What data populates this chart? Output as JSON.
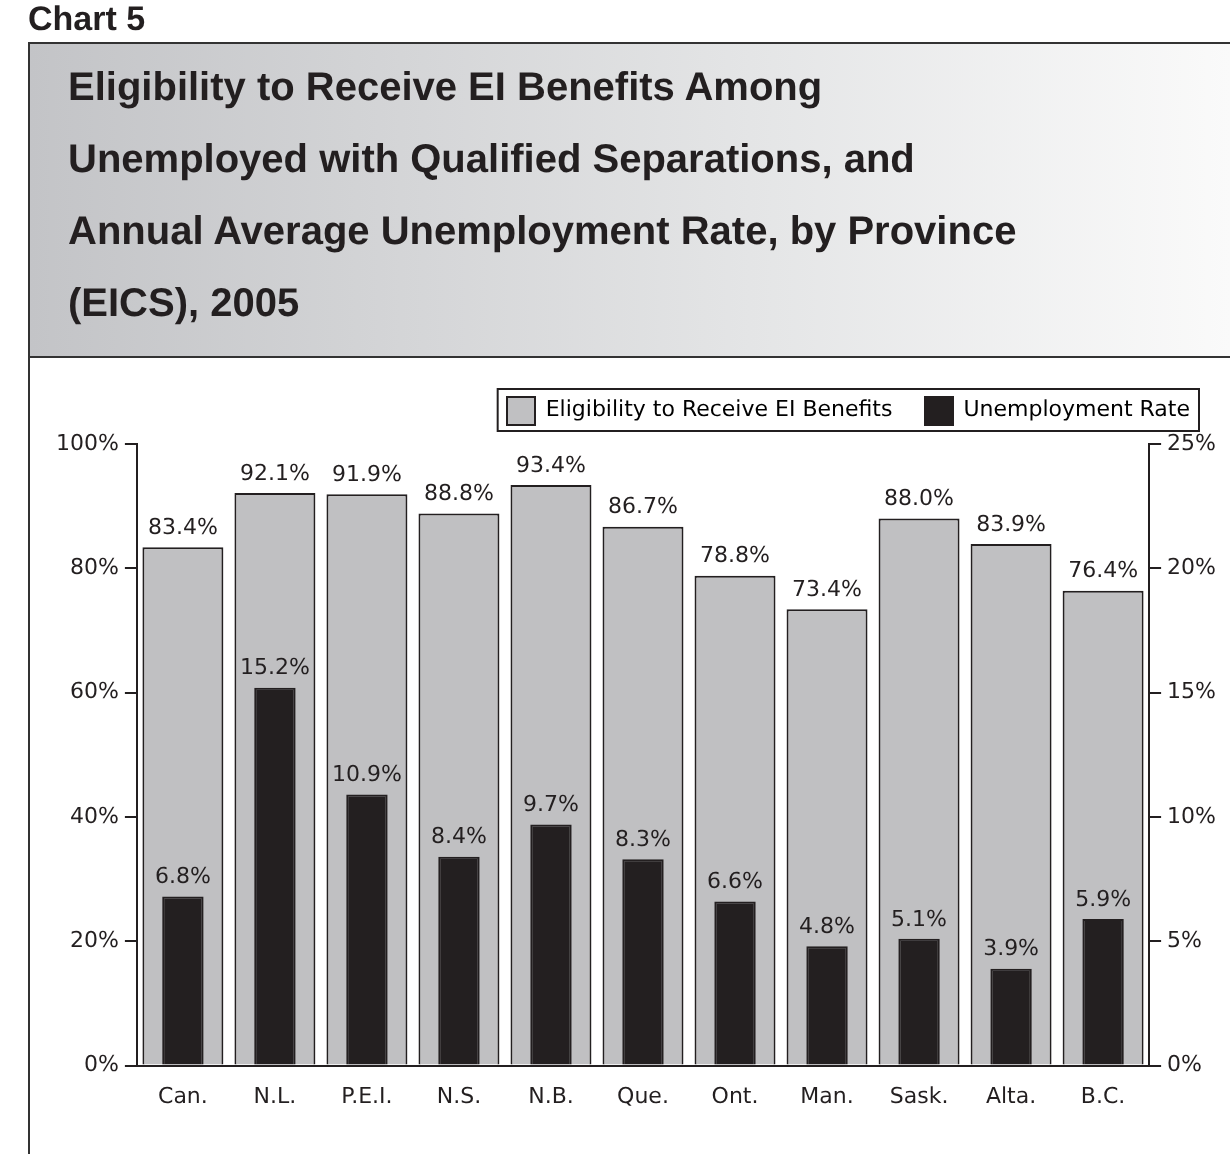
{
  "chart_data": {
    "type": "bar",
    "title": "Eligibility to Receive EI Benefits Among Unemployed with Qualified Separations, and Annual Average Unemployment Rate, by Province (EICS), 2005",
    "annotations": [
      "Chart 5"
    ],
    "categories": [
      "Can.",
      "N.L.",
      "P.E.I.",
      "N.S.",
      "N.B.",
      "Que.",
      "Ont.",
      "Man.",
      "Sask.",
      "Alta.",
      "B.C."
    ],
    "series": [
      {
        "name": "Eligibility to Receive EI Benefits",
        "color": "#c0c0c2",
        "values": [
          83.4,
          92.1,
          91.9,
          88.8,
          93.4,
          86.7,
          78.8,
          73.4,
          88.0,
          83.9,
          76.4
        ],
        "value_labels": [
          "83.4%",
          "92.1%",
          "91.9%",
          "88.8%",
          "93.4%",
          "86.7%",
          "78.8%",
          "73.4%",
          "88.0%",
          "83.9%",
          "76.4%"
        ]
      },
      {
        "name": "Unemployment Rate",
        "color": "#231f20",
        "axis": "y2",
        "values": [
          6.8,
          15.2,
          10.9,
          8.4,
          9.7,
          8.3,
          6.6,
          4.8,
          5.1,
          3.9,
          5.9
        ],
        "value_labels": [
          "6.8%",
          "15.2%",
          "10.9%",
          "8.4%",
          "9.7%",
          "8.3%",
          "6.6%",
          "4.8%",
          "5.1%",
          "3.9%",
          "5.9%"
        ]
      }
    ],
    "ylim": [
      0,
      100
    ],
    "yticks": [
      {
        "value": 0,
        "label": "0%"
      },
      {
        "value": 20,
        "label": "20%"
      },
      {
        "value": 40,
        "label": "40%"
      },
      {
        "value": 60,
        "label": "60%"
      },
      {
        "value": 80,
        "label": "80%"
      },
      {
        "value": 100,
        "label": "100%"
      }
    ],
    "y2lim": [
      0,
      25
    ],
    "y2ticks": [
      {
        "value": 0,
        "label": "0%"
      },
      {
        "value": 5,
        "label": "5%"
      },
      {
        "value": 10,
        "label": "10%"
      },
      {
        "value": 15,
        "label": "15%"
      },
      {
        "value": 20,
        "label": "20%"
      },
      {
        "value": 25,
        "label": "25%"
      }
    ],
    "legend": "top right",
    "grid": false
  }
}
